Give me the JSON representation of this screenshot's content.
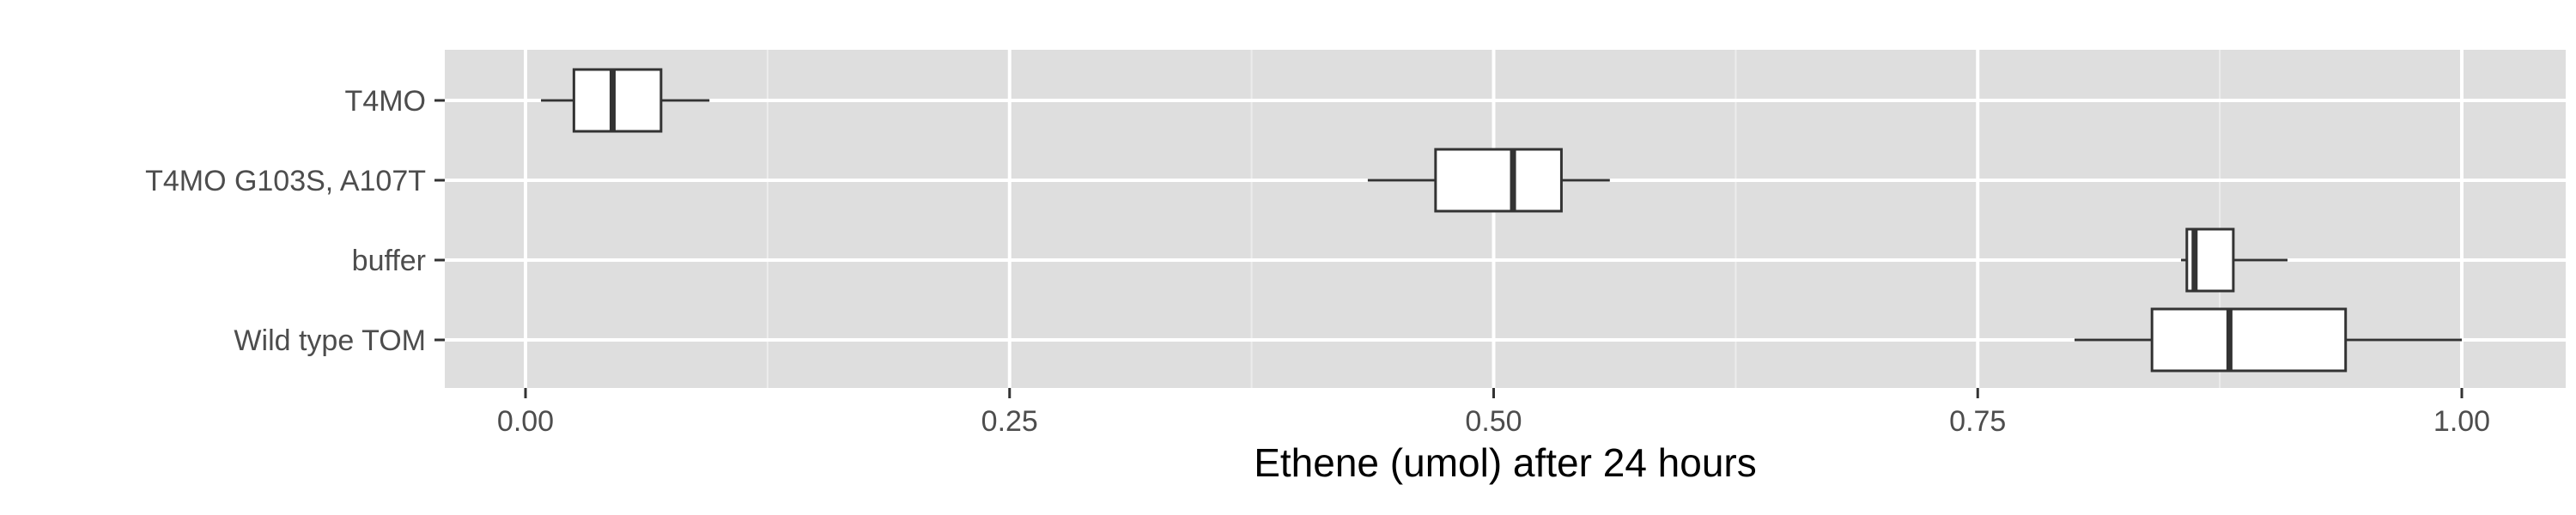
{
  "chart_data": {
    "type": "boxplot",
    "orientation": "horizontal",
    "xlabel": "Ethene (umol) after 24 hours",
    "ylabel": "",
    "xlim": [
      -0.085,
      2.1
    ],
    "x_ticks": [
      0.0,
      0.25,
      0.5,
      0.75,
      1.0
    ],
    "x_tick_labels": [
      "0.00",
      "0.25",
      "0.50",
      "0.75",
      "1.00"
    ],
    "grid": true,
    "legend": "none",
    "categories": [
      "T4MO",
      "T4MO G103S, A107T",
      "buffer",
      "Wild type TOM"
    ],
    "boxes": [
      {
        "category": "T4MO",
        "whisker_low": 0.008,
        "q1": 0.025,
        "median": 0.045,
        "q3": 0.07,
        "whisker_high": 0.095
      },
      {
        "category": "T4MO G103S, A107T",
        "whisker_low": 0.435,
        "q1": 0.47,
        "median": 0.51,
        "q3": 0.535,
        "whisker_high": 0.56
      },
      {
        "category": "buffer",
        "whisker_low": 0.855,
        "q1": 0.858,
        "median": 0.862,
        "q3": 0.882,
        "whisker_high": 0.91
      },
      {
        "category": "Wild type TOM",
        "whisker_low": 0.8,
        "q1": 0.84,
        "median": 0.88,
        "q3": 0.94,
        "whisker_high": 1.0
      }
    ],
    "colors": {
      "panel_background": "#dedede",
      "grid_major": "#ffffff",
      "grid_minor": "#ececec",
      "box_fill": "#ffffff",
      "box_stroke": "#333333",
      "tick_text": "#4d4d4d",
      "title_text": "#000000"
    }
  }
}
